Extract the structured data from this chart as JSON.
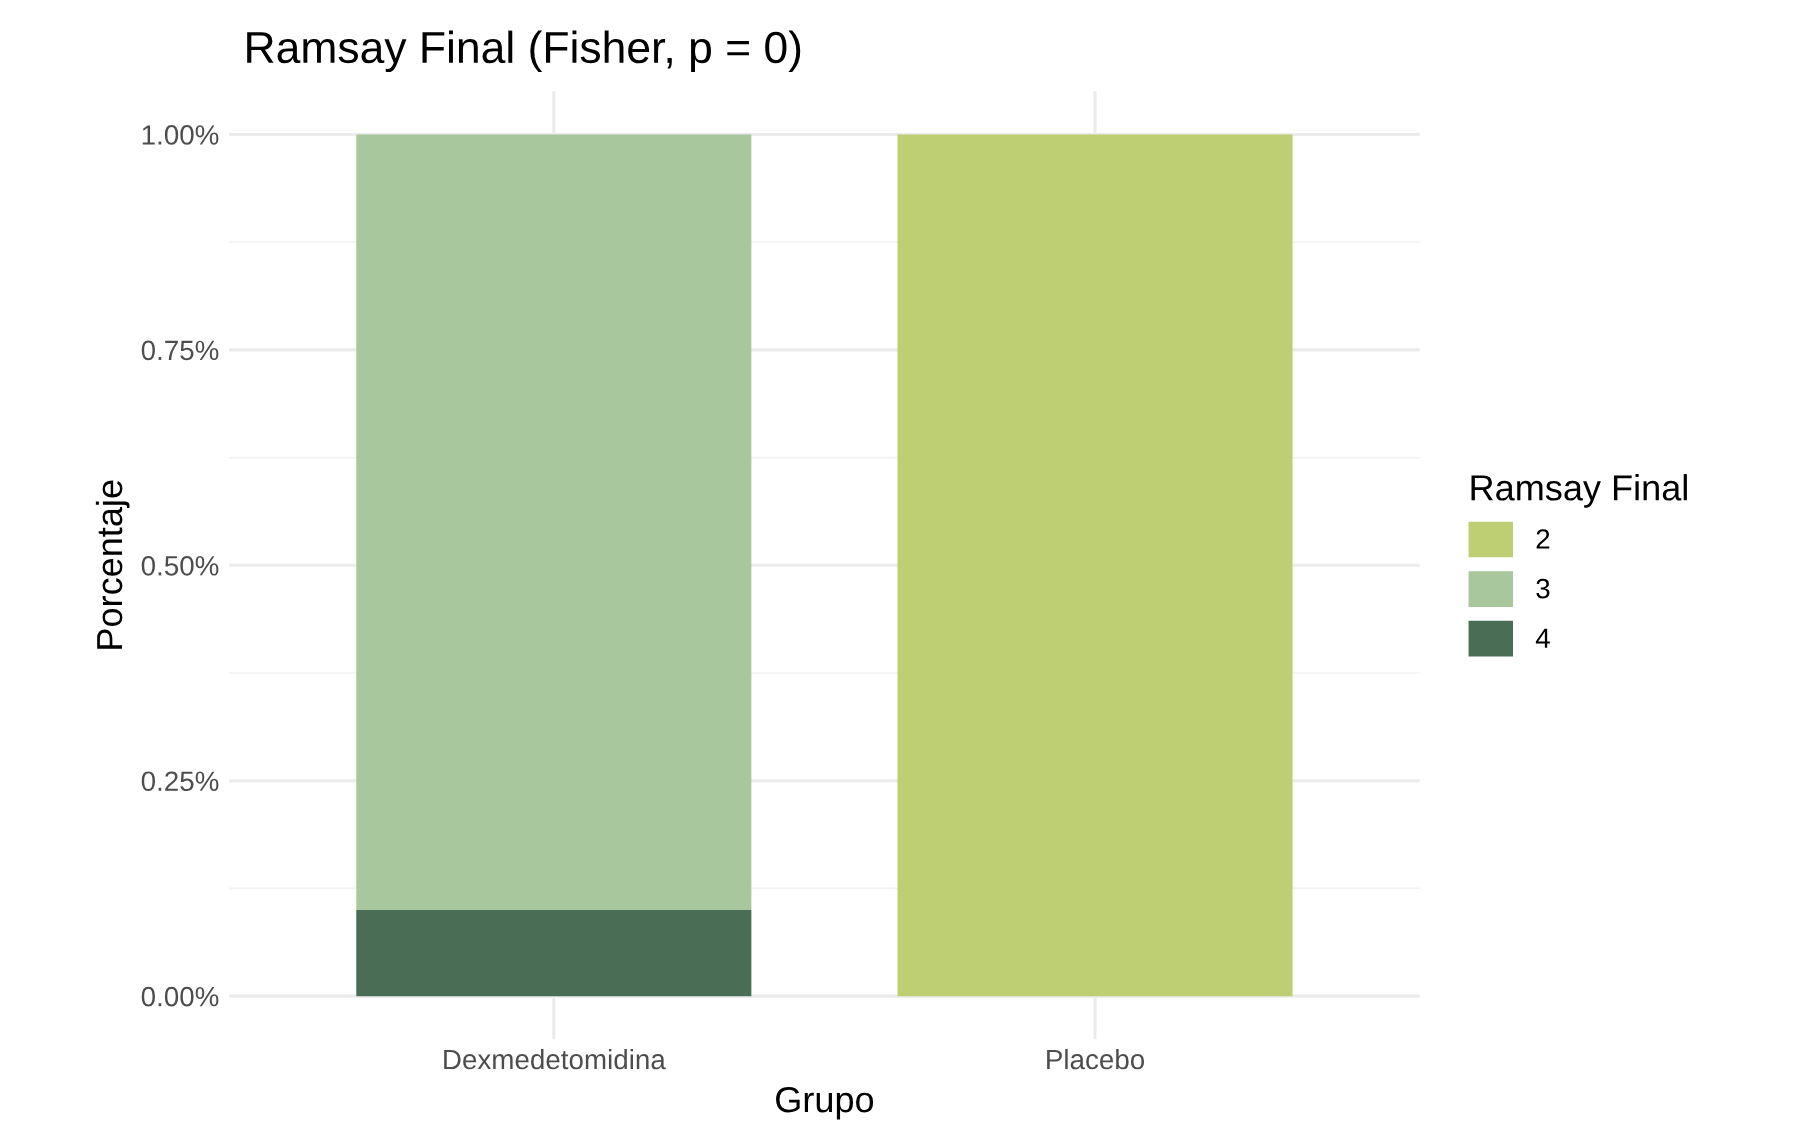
{
  "chart_data": {
    "type": "bar",
    "title": "Ramsay Final (Fisher, p = 0)",
    "xlabel": "Grupo",
    "ylabel": "Porcentaje",
    "legend_title": "Ramsay Final",
    "categories": [
      "Dexmedetomidina",
      "Placebo"
    ],
    "series": [
      {
        "name": "4",
        "color": "#4a6e55",
        "values": [
          0.1,
          0
        ]
      },
      {
        "name": "3",
        "color": "#a9c79d",
        "values": [
          0.9,
          0
        ]
      },
      {
        "name": "2",
        "color": "#bdcf72",
        "values": [
          0,
          1.0
        ]
      }
    ],
    "stacked": true,
    "ylim": [
      -0.05,
      1.05
    ],
    "yticks": [
      {
        "value": 0,
        "label": "0.00%"
      },
      {
        "value": 0.25,
        "label": "0.25%"
      },
      {
        "value": 0.5,
        "label": "0.50%"
      },
      {
        "value": 0.75,
        "label": "0.75%"
      },
      {
        "value": 1.0,
        "label": "1.00%"
      }
    ],
    "grid": true,
    "legend": "right"
  }
}
